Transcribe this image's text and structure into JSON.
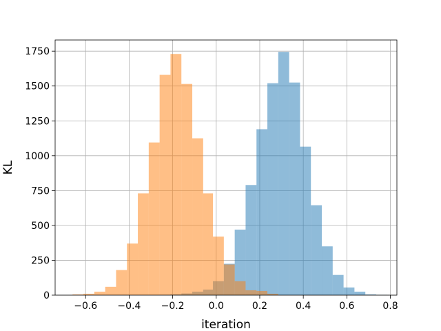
{
  "chart_data": {
    "type": "bar",
    "title": "",
    "xlabel": "iteration",
    "ylabel": "KL",
    "xlim": [
      -0.74,
      0.83
    ],
    "ylim": [
      0,
      1830
    ],
    "grid": true,
    "histogram": true,
    "alpha": 0.5,
    "xticks": [
      -0.6,
      -0.4,
      -0.2,
      0.0,
      0.2,
      0.4,
      0.6,
      0.8
    ],
    "xtick_labels": [
      "−0.6",
      "−0.4",
      "−0.2",
      "0.0",
      "0.2",
      "0.4",
      "0.6",
      "0.8"
    ],
    "yticks": [
      0,
      250,
      500,
      750,
      1000,
      1250,
      1500,
      1750
    ],
    "ytick_labels": [
      "0",
      "250",
      "500",
      "750",
      "1000",
      "1250",
      "1500",
      "1750"
    ],
    "series": [
      {
        "color": "#1f77b4",
        "bins": [
          {
            "x0": -0.26,
            "x1": -0.21,
            "value": 2
          },
          {
            "x0": -0.21,
            "x1": -0.16,
            "value": 5
          },
          {
            "x0": -0.16,
            "x1": -0.11,
            "value": 12
          },
          {
            "x0": -0.11,
            "x1": -0.06,
            "value": 25
          },
          {
            "x0": -0.06,
            "x1": -0.015,
            "value": 40
          },
          {
            "x0": -0.015,
            "x1": 0.035,
            "value": 100
          },
          {
            "x0": 0.035,
            "x1": 0.085,
            "value": 225
          },
          {
            "x0": 0.085,
            "x1": 0.135,
            "value": 470
          },
          {
            "x0": 0.135,
            "x1": 0.185,
            "value": 790
          },
          {
            "x0": 0.185,
            "x1": 0.235,
            "value": 1190
          },
          {
            "x0": 0.235,
            "x1": 0.285,
            "value": 1520
          },
          {
            "x0": 0.285,
            "x1": 0.335,
            "value": 1745
          },
          {
            "x0": 0.335,
            "x1": 0.385,
            "value": 1525
          },
          {
            "x0": 0.385,
            "x1": 0.435,
            "value": 1065
          },
          {
            "x0": 0.435,
            "x1": 0.485,
            "value": 645
          },
          {
            "x0": 0.485,
            "x1": 0.535,
            "value": 350
          },
          {
            "x0": 0.535,
            "x1": 0.585,
            "value": 145
          },
          {
            "x0": 0.585,
            "x1": 0.635,
            "value": 55
          },
          {
            "x0": 0.635,
            "x1": 0.685,
            "value": 25
          },
          {
            "x0": 0.685,
            "x1": 0.735,
            "value": 5
          },
          {
            "x0": 0.735,
            "x1": 0.785,
            "value": 2
          }
        ]
      },
      {
        "color": "#ff7f0e",
        "bins": [
          {
            "x0": -0.66,
            "x1": -0.61,
            "value": 5
          },
          {
            "x0": -0.61,
            "x1": -0.56,
            "value": 10
          },
          {
            "x0": -0.56,
            "x1": -0.51,
            "value": 25
          },
          {
            "x0": -0.51,
            "x1": -0.46,
            "value": 60
          },
          {
            "x0": -0.46,
            "x1": -0.41,
            "value": 180
          },
          {
            "x0": -0.41,
            "x1": -0.36,
            "value": 370
          },
          {
            "x0": -0.36,
            "x1": -0.31,
            "value": 730
          },
          {
            "x0": -0.31,
            "x1": -0.26,
            "value": 1095
          },
          {
            "x0": -0.26,
            "x1": -0.21,
            "value": 1580
          },
          {
            "x0": -0.21,
            "x1": -0.16,
            "value": 1730
          },
          {
            "x0": -0.16,
            "x1": -0.11,
            "value": 1515
          },
          {
            "x0": -0.11,
            "x1": -0.06,
            "value": 1125
          },
          {
            "x0": -0.06,
            "x1": -0.015,
            "value": 730
          },
          {
            "x0": -0.015,
            "x1": 0.035,
            "value": 420
          },
          {
            "x0": 0.035,
            "x1": 0.085,
            "value": 220
          },
          {
            "x0": 0.085,
            "x1": 0.135,
            "value": 100
          },
          {
            "x0": 0.135,
            "x1": 0.185,
            "value": 35
          },
          {
            "x0": 0.185,
            "x1": 0.235,
            "value": 30
          },
          {
            "x0": 0.235,
            "x1": 0.285,
            "value": 10
          }
        ]
      }
    ]
  }
}
